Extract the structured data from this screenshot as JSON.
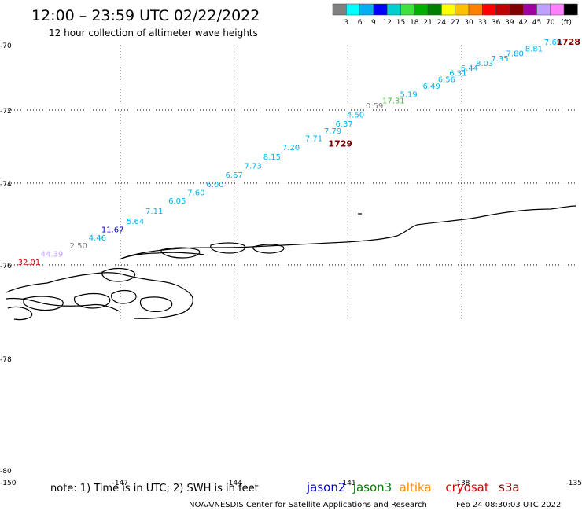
{
  "header": {
    "title": "12:00 – 23:59 UTC 02/22/2022",
    "subtitle": "12 hour collection of altimeter wave heights"
  },
  "legend_scale": {
    "colors": [
      "#808080",
      "#00ffff",
      "#00b0f0",
      "#0000ff",
      "#00cfcf",
      "#40e040",
      "#00b000",
      "#008000",
      "#ffff00",
      "#ffc000",
      "#ff8000",
      "#ff0000",
      "#c00000",
      "#800000",
      "#a000a0",
      "#c0a0ff",
      "#ff80ff",
      "#000000"
    ],
    "labels": [
      "3",
      "6",
      "9",
      "12",
      "15",
      "18",
      "21",
      "24",
      "27",
      "30",
      "33",
      "36",
      "39",
      "42",
      "45",
      "70"
    ],
    "unit": "(ft)"
  },
  "footer": {
    "note": "note:  1) Time is in UTC; 2) SWH is in feet",
    "satellites": [
      {
        "name": "jason2",
        "color": "#0000cc"
      },
      {
        "name": "jason3",
        "color": "#008000"
      },
      {
        "name": "altika",
        "color": "#ff8c00"
      },
      {
        "name": "cryosat",
        "color": "#dd0000"
      },
      {
        "name": "s3a",
        "color": "#800000"
      }
    ],
    "credit": "NOAA/NESDIS Center for Satellite Applications and Research",
    "timestamp": "Feb 24 08:30:03 UTC 2022"
  },
  "chart_data": {
    "type": "scatter",
    "title": "12:00 – 23:59 UTC 02/22/2022",
    "subtitle": "12 hour collection of altimeter wave heights",
    "x_ticks": [
      "-150",
      "-147",
      "-144",
      "-141",
      "-138",
      "-135"
    ],
    "y_ticks": [
      "-70",
      "-72",
      "-74",
      "-76",
      "-78",
      "-80"
    ],
    "xlim": [
      -150,
      -135
    ],
    "y_scale": "polar stereographic latitude",
    "grid": true,
    "time_labels": [
      {
        "text": "1728",
        "lon": -134.9,
        "lat": -70.0,
        "color": "#800000"
      },
      {
        "text": "1729",
        "lon": -141.2,
        "lat": -73.0,
        "color": "#800000"
      }
    ],
    "points": [
      {
        "swh": "7.69",
        "lon": -135.6,
        "lat": -70.0,
        "color": "#00b0f0"
      },
      {
        "swh": "8.81",
        "lon": -136.1,
        "lat": -70.2,
        "color": "#00b0f0"
      },
      {
        "swh": "7.80",
        "lon": -136.6,
        "lat": -70.35,
        "color": "#00b0f0"
      },
      {
        "swh": "7.35",
        "lon": -137.0,
        "lat": -70.5,
        "color": "#00b0f0"
      },
      {
        "swh": "8.03",
        "lon": -137.4,
        "lat": -70.65,
        "color": "#00b0f0"
      },
      {
        "swh": "6.44",
        "lon": -137.8,
        "lat": -70.8,
        "color": "#00b0f0"
      },
      {
        "swh": "6.31",
        "lon": -138.1,
        "lat": -70.95,
        "color": "#00b0f0"
      },
      {
        "swh": "6.56",
        "lon": -138.4,
        "lat": -71.15,
        "color": "#00b0f0"
      },
      {
        "swh": "6.49",
        "lon": -138.8,
        "lat": -71.35,
        "color": "#00b0f0"
      },
      {
        "swh": "5.19",
        "lon": -139.4,
        "lat": -71.6,
        "color": "#00b0f0"
      },
      {
        "swh": "17.31",
        "lon": -139.8,
        "lat": -71.8,
        "color": "#40c040"
      },
      {
        "swh": "0.59",
        "lon": -140.3,
        "lat": -71.95,
        "color": "#808080"
      },
      {
        "swh": "4.50",
        "lon": -140.8,
        "lat": -72.2,
        "color": "#00b0f0"
      },
      {
        "swh": "6.37",
        "lon": -141.1,
        "lat": -72.45,
        "color": "#00b0f0"
      },
      {
        "swh": "7.79",
        "lon": -141.4,
        "lat": -72.65,
        "color": "#00b0f0"
      },
      {
        "swh": "7.71",
        "lon": -141.9,
        "lat": -72.85,
        "color": "#00b0f0"
      },
      {
        "swh": "7.20",
        "lon": -142.5,
        "lat": -73.1,
        "color": "#00b0f0"
      },
      {
        "swh": "8.15",
        "lon": -143.0,
        "lat": -73.35,
        "color": "#00b0f0"
      },
      {
        "swh": "7.73",
        "lon": -143.5,
        "lat": -73.6,
        "color": "#00b0f0"
      },
      {
        "swh": "6.67",
        "lon": -144.0,
        "lat": -73.85,
        "color": "#00b0f0"
      },
      {
        "swh": "6.00",
        "lon": -144.5,
        "lat": -74.1,
        "color": "#00b0f0"
      },
      {
        "swh": "7.60",
        "lon": -145.0,
        "lat": -74.3,
        "color": "#00b0f0"
      },
      {
        "swh": "6.05",
        "lon": -145.5,
        "lat": -74.5,
        "color": "#00b0f0"
      },
      {
        "swh": "7.11",
        "lon": -146.1,
        "lat": -74.75,
        "color": "#00b0f0"
      },
      {
        "swh": "5.64",
        "lon": -146.6,
        "lat": -75.0,
        "color": "#00b0f0"
      },
      {
        "swh": "11.67",
        "lon": -147.2,
        "lat": -75.2,
        "color": "#0000cc"
      },
      {
        "swh": "4.46",
        "lon": -147.6,
        "lat": -75.4,
        "color": "#00b0f0"
      },
      {
        "swh": "2.50",
        "lon": -148.1,
        "lat": -75.6,
        "color": "#808080"
      },
      {
        "swh": "44.39",
        "lon": -148.8,
        "lat": -75.8,
        "color": "#c0a0ff"
      },
      {
        "swh": "32.01",
        "lon": -149.4,
        "lat": -76.0,
        "color": "#dd0000"
      }
    ]
  }
}
